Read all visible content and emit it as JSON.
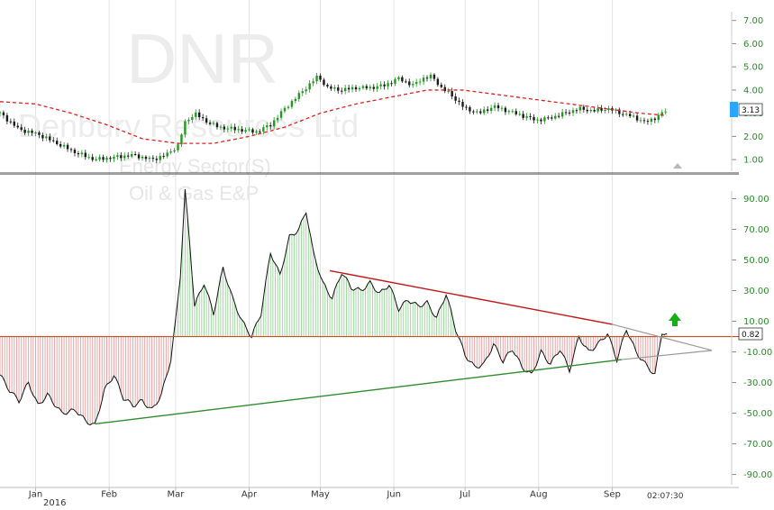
{
  "watermark": {
    "ticker": "DNR",
    "company": "Denbury Resources Ltd",
    "sector": "Energy Sector(S)",
    "industry": "Oil & Gas E&P"
  },
  "time_label": "02:07:30",
  "year_label": "2016",
  "colors": {
    "up": "#1f9a1f",
    "down": "#1a1a1a",
    "ma": "#e02020",
    "pos_fill": "#9ed89e",
    "neg_fill": "#e8a4a4",
    "zero_line": "#c8501e",
    "resistance": "#c01818",
    "support": "#2e8b2e",
    "projection": "#9a9a9a",
    "arrow": "#16b016",
    "price_badge": "#2aa6ff"
  },
  "chart_data": [
    {
      "type": "candlestick",
      "panel": "price",
      "ylim": [
        0.5,
        7.3
      ],
      "yticks": [
        1.0,
        2.0,
        3.0,
        4.0,
        5.0,
        6.0,
        7.0
      ],
      "ytick_labels": [
        "1.00",
        "2.00",
        "3.00",
        "4.00",
        "5.00",
        "6.00",
        "7.00"
      ],
      "last_price": "3.13",
      "x_domain_days": [
        0,
        281
      ],
      "month_ticks": [
        {
          "label": "Jan",
          "day": 15
        },
        {
          "label": "Feb",
          "day": 46
        },
        {
          "label": "Mar",
          "day": 74
        },
        {
          "label": "Apr",
          "day": 105
        },
        {
          "label": "May",
          "day": 135
        },
        {
          "label": "Jun",
          "day": 166
        },
        {
          "label": "Jul",
          "day": 196
        },
        {
          "label": "Aug",
          "day": 227
        },
        {
          "label": "Sep",
          "day": 258
        }
      ],
      "close_anchors": [
        [
          0,
          3.0
        ],
        [
          8,
          2.3
        ],
        [
          16,
          2.1
        ],
        [
          24,
          1.7
        ],
        [
          32,
          1.3
        ],
        [
          40,
          1.0
        ],
        [
          48,
          1.1
        ],
        [
          56,
          1.2
        ],
        [
          64,
          1.0
        ],
        [
          70,
          1.2
        ],
        [
          75,
          1.6
        ],
        [
          78,
          2.6
        ],
        [
          82,
          3.0
        ],
        [
          86,
          2.7
        ],
        [
          92,
          2.4
        ],
        [
          100,
          2.3
        ],
        [
          108,
          2.2
        ],
        [
          114,
          2.5
        ],
        [
          120,
          3.2
        ],
        [
          126,
          3.8
        ],
        [
          130,
          4.2
        ],
        [
          134,
          4.6
        ],
        [
          138,
          4.1
        ],
        [
          144,
          4.0
        ],
        [
          150,
          4.1
        ],
        [
          156,
          4.1
        ],
        [
          162,
          4.2
        ],
        [
          168,
          4.5
        ],
        [
          174,
          4.2
        ],
        [
          178,
          4.5
        ],
        [
          182,
          4.6
        ],
        [
          186,
          4.1
        ],
        [
          190,
          3.8
        ],
        [
          196,
          3.2
        ],
        [
          202,
          3.0
        ],
        [
          208,
          3.3
        ],
        [
          214,
          3.1
        ],
        [
          220,
          2.9
        ],
        [
          226,
          2.7
        ],
        [
          232,
          2.8
        ],
        [
          238,
          3.0
        ],
        [
          244,
          3.2
        ],
        [
          250,
          3.1
        ],
        [
          256,
          3.2
        ],
        [
          262,
          3.0
        ],
        [
          268,
          2.8
        ],
        [
          272,
          2.6
        ],
        [
          276,
          2.8
        ],
        [
          281,
          3.13
        ]
      ],
      "ma_anchors": [
        [
          0,
          3.5
        ],
        [
          15,
          3.4
        ],
        [
          30,
          3.0
        ],
        [
          45,
          2.5
        ],
        [
          60,
          1.9
        ],
        [
          75,
          1.7
        ],
        [
          90,
          1.7
        ],
        [
          105,
          2.0
        ],
        [
          120,
          2.4
        ],
        [
          135,
          3.0
        ],
        [
          150,
          3.4
        ],
        [
          165,
          3.7
        ],
        [
          180,
          4.0
        ],
        [
          195,
          4.0
        ],
        [
          210,
          3.8
        ],
        [
          225,
          3.6
        ],
        [
          240,
          3.4
        ],
        [
          255,
          3.2
        ],
        [
          270,
          3.0
        ],
        [
          281,
          2.9
        ]
      ]
    },
    {
      "type": "area",
      "panel": "oscillator",
      "ylim": [
        -92,
        95
      ],
      "yticks": [
        90,
        70,
        50,
        30,
        10,
        -10,
        -30,
        -50,
        -70,
        -90
      ],
      "ytick_labels": [
        "90.00",
        "70.00",
        "50.00",
        "30.00",
        "10.00",
        "-10.00",
        "-30.00",
        "-50.00",
        "-70.00",
        "-90.00"
      ],
      "last_value": "0.82",
      "x_domain_days": [
        0,
        281
      ],
      "values_anchors": [
        [
          0,
          -25
        ],
        [
          4,
          -35
        ],
        [
          8,
          -42
        ],
        [
          12,
          -30
        ],
        [
          16,
          -45
        ],
        [
          20,
          -38
        ],
        [
          26,
          -50
        ],
        [
          32,
          -48
        ],
        [
          36,
          -55
        ],
        [
          40,
          -58
        ],
        [
          44,
          -35
        ],
        [
          48,
          -25
        ],
        [
          52,
          -40
        ],
        [
          56,
          -45
        ],
        [
          60,
          -42
        ],
        [
          64,
          -48
        ],
        [
          68,
          -38
        ],
        [
          72,
          -15
        ],
        [
          74,
          10
        ],
        [
          76,
          40
        ],
        [
          78,
          95
        ],
        [
          80,
          60
        ],
        [
          82,
          20
        ],
        [
          86,
          35
        ],
        [
          90,
          15
        ],
        [
          94,
          45
        ],
        [
          98,
          25
        ],
        [
          102,
          10
        ],
        [
          106,
          0
        ],
        [
          110,
          15
        ],
        [
          114,
          55
        ],
        [
          118,
          40
        ],
        [
          122,
          65
        ],
        [
          126,
          70
        ],
        [
          129,
          82
        ],
        [
          132,
          55
        ],
        [
          136,
          35
        ],
        [
          140,
          25
        ],
        [
          144,
          42
        ],
        [
          148,
          32
        ],
        [
          152,
          30
        ],
        [
          156,
          35
        ],
        [
          160,
          28
        ],
        [
          164,
          34
        ],
        [
          168,
          18
        ],
        [
          172,
          24
        ],
        [
          176,
          20
        ],
        [
          180,
          22
        ],
        [
          184,
          12
        ],
        [
          188,
          28
        ],
        [
          192,
          5
        ],
        [
          196,
          -12
        ],
        [
          200,
          -20
        ],
        [
          204,
          -18
        ],
        [
          208,
          -5
        ],
        [
          212,
          -16
        ],
        [
          216,
          -8
        ],
        [
          220,
          -20
        ],
        [
          224,
          -25
        ],
        [
          228,
          -10
        ],
        [
          232,
          -18
        ],
        [
          236,
          -8
        ],
        [
          240,
          -22
        ],
        [
          244,
          0
        ],
        [
          248,
          -10
        ],
        [
          252,
          -5
        ],
        [
          256,
          2
        ],
        [
          260,
          -15
        ],
        [
          264,
          5
        ],
        [
          268,
          -10
        ],
        [
          272,
          -18
        ],
        [
          276,
          -25
        ],
        [
          279,
          3
        ],
        [
          281,
          0.82
        ]
      ],
      "trendlines": {
        "resistance": [
          [
            139,
            43
          ],
          [
            258,
            8
          ]
        ],
        "support": [
          [
            40,
            -57
          ],
          [
            262,
            -15
          ]
        ],
        "projection_upper": [
          [
            258,
            8
          ],
          [
            300,
            -9
          ]
        ],
        "projection_lower": [
          [
            262,
            -15
          ],
          [
            300,
            -9
          ]
        ]
      }
    }
  ]
}
